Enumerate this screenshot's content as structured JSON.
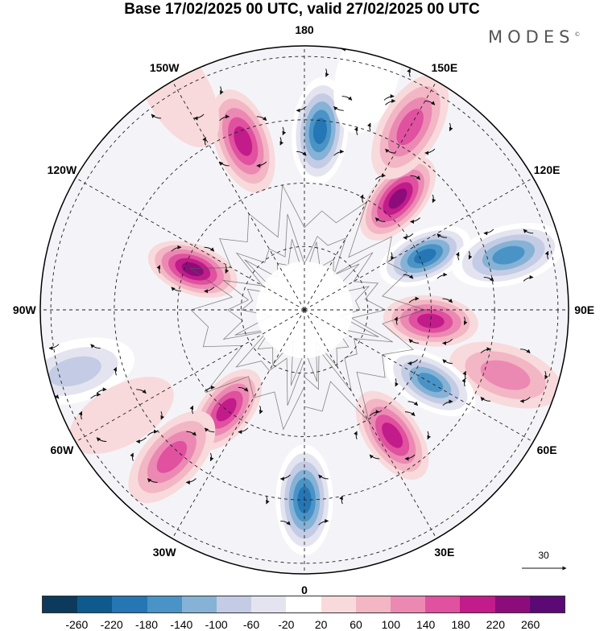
{
  "title": "Base 17/02/2025 00 UTC, valid 27/02/2025 00 UTC",
  "brand": "MODES",
  "brand_mark": "©",
  "longitude_labels": [
    {
      "text": "180",
      "deg": 180
    },
    {
      "text": "150E",
      "deg": 150
    },
    {
      "text": "120E",
      "deg": 120
    },
    {
      "text": "90E",
      "deg": 90
    },
    {
      "text": "60E",
      "deg": 60
    },
    {
      "text": "30E",
      "deg": 30
    },
    {
      "text": "0",
      "deg": 0
    },
    {
      "text": "30W",
      "deg": -30
    },
    {
      "text": "60W",
      "deg": -60
    },
    {
      "text": "90W",
      "deg": -90
    },
    {
      "text": "120W",
      "deg": -120
    },
    {
      "text": "150W",
      "deg": -150
    }
  ],
  "vector_reference": {
    "value": "30"
  },
  "colorbar": {
    "colors": [
      "#0c3a5c",
      "#0e5a8c",
      "#2576b4",
      "#4a93c6",
      "#86b2d6",
      "#c3cce4",
      "#e4e4f0",
      "#ffffff",
      "#f8dadc",
      "#f3b6c4",
      "#eb89b3",
      "#e0519f",
      "#c21b8a",
      "#8d0c7c",
      "#5b0a75"
    ],
    "ticks": [
      "-260",
      "-220",
      "-180",
      "-140",
      "-100",
      "-60",
      "-20",
      "20",
      "60",
      "100",
      "140",
      "180",
      "220",
      "260"
    ]
  },
  "anomaly_centers": [
    {
      "lon": 175,
      "r": 0.68,
      "value": -230
    },
    {
      "lon": -160,
      "r": 0.68,
      "value": 210
    },
    {
      "lon": 140,
      "r": 0.55,
      "value": 220
    },
    {
      "lon": 150,
      "r": 0.8,
      "value": 160
    },
    {
      "lon": 114,
      "r": 0.5,
      "value": -240
    },
    {
      "lon": 105,
      "r": 0.8,
      "value": -210
    },
    {
      "lon": -110,
      "r": 0.45,
      "value": 250
    },
    {
      "lon": 85,
      "r": 0.48,
      "value": 190
    },
    {
      "lon": 72,
      "r": 0.8,
      "value": 100
    },
    {
      "lon": 60,
      "r": 0.55,
      "value": -210
    },
    {
      "lon": -75,
      "r": 0.9,
      "value": -130
    },
    {
      "lon": -60,
      "r": 0.8,
      "value": 40
    },
    {
      "lon": -38,
      "r": 0.48,
      "value": 200
    },
    {
      "lon": -42,
      "r": 0.75,
      "value": 170
    },
    {
      "lon": 35,
      "r": 0.58,
      "value": 210
    },
    {
      "lon": 0,
      "r": 0.72,
      "value": -220
    },
    {
      "lon": -150,
      "r": 0.96,
      "value": 40
    },
    {
      "lon": 165,
      "r": 0.93,
      "value": -40
    }
  ]
}
